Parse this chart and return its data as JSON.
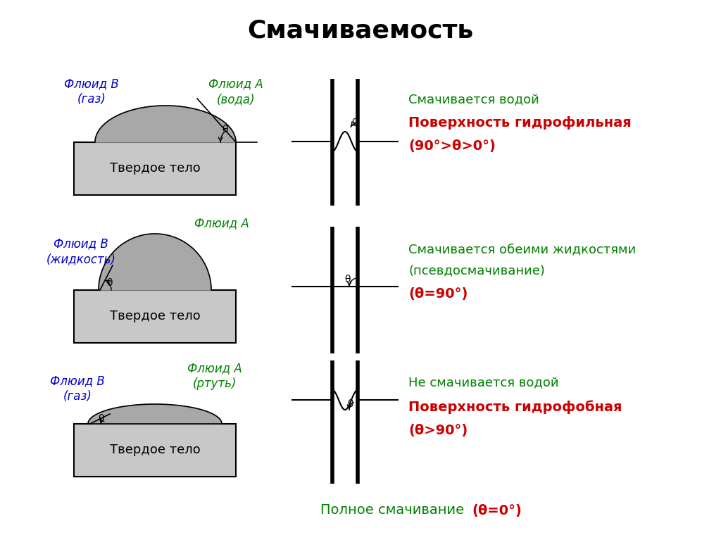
{
  "title": "Смачиваемость",
  "title_fontsize": 26,
  "title_fontweight": "bold",
  "bg_color": "#ffffff",
  "solid_color": "#c8c8c8",
  "solid_edge": "#000000",
  "drop_color": "#a8a8a8",
  "blue_color": "#0000cc",
  "green_color": "#008000",
  "red_color": "#cc0000",
  "black_color": "#000000",
  "row1": {
    "label_B": "Флюид В\n(газ)",
    "label_A": "Флюид А\n(вода)",
    "solid_label": "Твердое тело",
    "right_text1": "Смачивается водой",
    "right_text2": "Поверхность гидрофильная",
    "right_text3": "(90°>θ>0°)"
  },
  "row2": {
    "label_B": "Флюид В\n(жидкость)",
    "label_A": "Флюид А",
    "solid_label": "Твердое тело",
    "right_text1": "Смачивается обеими жидкостями",
    "right_text2": "(псевдосмачивание)",
    "right_text3": "(θ=90°)"
  },
  "row3": {
    "label_B": "Флюид В\n(газ)",
    "label_A": "Флюид А\n(ртуть)",
    "solid_label": "Твердое тело",
    "right_text1": "Не смачивается водой",
    "right_text2": "Поверхность гидрофобная",
    "right_text3": "(θ>90°)"
  },
  "bottom_text1": "Полное смачивание",
  "bottom_text2": "(θ=0°)"
}
